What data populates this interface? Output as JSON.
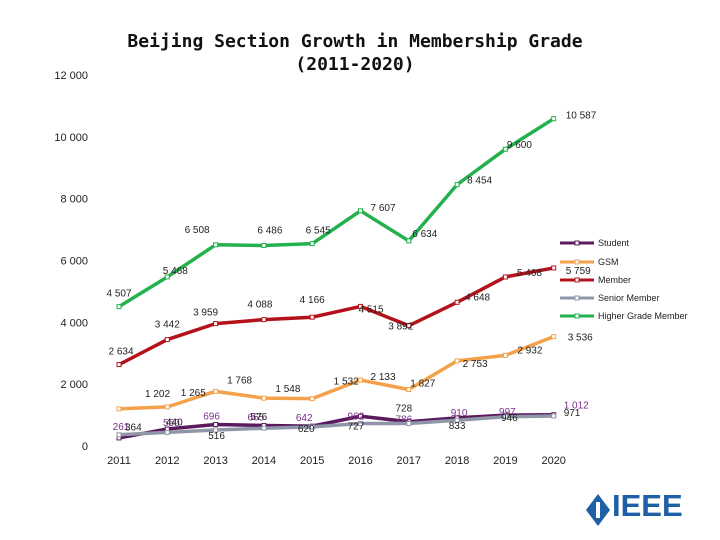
{
  "chart_data": {
    "type": "line",
    "title_line1": "Beijing Section Growth in Membership Grade",
    "title_line2": "(2011-2020)",
    "categories": [
      "2011",
      "2012",
      "2013",
      "2014",
      "2015",
      "2016",
      "2017",
      "2018",
      "2019",
      "2020"
    ],
    "y_ticks": [
      "0",
      "2 000",
      "4 000",
      "6 000",
      "8 000",
      "10 000",
      "12 000"
    ],
    "ylim": [
      0,
      12000
    ],
    "series": [
      {
        "name": "Higher Grade Member",
        "color": "#22b14c",
        "values": [
          4507,
          5468,
          6508,
          6486,
          6545,
          7607,
          6634,
          8454,
          9600,
          10587
        ],
        "labels": [
          "4 507",
          "5 468",
          "6 508",
          "6 486",
          "6 545",
          "7 607",
          "6 634",
          "8 454",
          "9 600",
          "10 587"
        ]
      },
      {
        "name": "Member",
        "color": "#b3121a",
        "values": [
          2634,
          3442,
          3959,
          4088,
          4166,
          4515,
          3892,
          4648,
          5468,
          5759
        ],
        "labels": [
          "2 634",
          "3 442",
          "3 959",
          "4 088",
          "4 166",
          "4 515",
          "3 892",
          "4 648",
          "5 468",
          "5 759"
        ]
      },
      {
        "name": "GSM",
        "color": "#f4a14c",
        "values": [
          1202,
          1265,
          1768,
          1548,
          1532,
          2133,
          1827,
          2753,
          2932,
          3536
        ],
        "labels": [
          "1 202",
          "1 265",
          "1 768",
          "1 548",
          "1 532",
          "2 133",
          "1 827",
          "2 753",
          "2 932",
          "3 536"
        ]
      },
      {
        "name": "Student",
        "color": "#5b1a5e",
        "values": [
          261,
          550,
          696,
          665,
          642,
          962,
          786,
          910,
          997,
          1012
        ],
        "labels": [
          "261",
          "550",
          "696",
          "665",
          "642",
          "962",
          "786",
          "910",
          "997",
          "1 012"
        ]
      },
      {
        "name": "Senior Member",
        "color": "#8f96a8",
        "values": [
          364,
          440,
          516,
          576,
          620,
          727,
          728,
          833,
          946,
          971
        ],
        "labels": [
          "364",
          "440",
          "516",
          "576",
          "620",
          "727",
          "728",
          "833",
          "946",
          "971"
        ]
      }
    ],
    "legend": [
      "Student",
      "GSM",
      "Member",
      "Senior Member",
      "Higher Grade Member"
    ],
    "legend_placement": "right"
  },
  "branding": {
    "logo_text": "IEEE",
    "logo_color": "#1f5fa5"
  }
}
